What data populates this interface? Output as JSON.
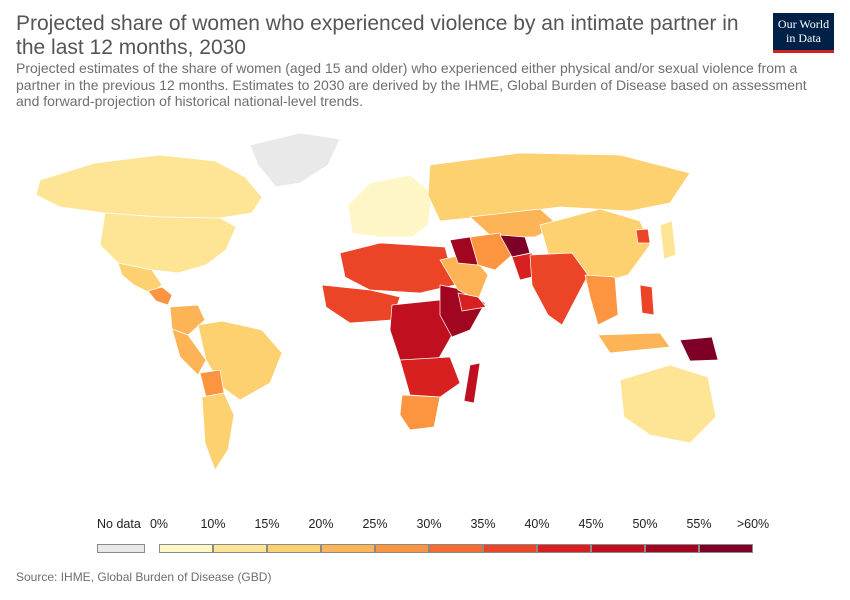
{
  "header": {
    "title": "Projected share of women who experienced violence by an intimate partner in the last 12 months, 2030",
    "subtitle": "Projected estimates of the share of women (aged 15 and older) who experienced either physical and/or sexual violence from a partner in the previous 12 months. Estimates to 2030 are derived by the IHME, Global Burden of Disease based on assessment and forward-projection of historical national-level trends.",
    "logo_line1": "Our World",
    "logo_line2": "in Data"
  },
  "legend": {
    "no_data_label": "No data",
    "no_data_color": "#e9e9e9",
    "ticks": [
      "0%",
      "10%",
      "15%",
      "20%",
      "25%",
      "30%",
      "35%",
      "40%",
      "45%",
      "50%",
      "55%",
      ">60%"
    ],
    "bin_colors": [
      "#fff6c8",
      "#fee596",
      "#fdd070",
      "#fdb456",
      "#fc9440",
      "#f76c30",
      "#ec4427",
      "#d7201f",
      "#c0101f",
      "#a0061f",
      "#7f0026"
    ]
  },
  "map_regions": [
    {
      "name": "Canada",
      "bin": 1
    },
    {
      "name": "United States",
      "bin": 1
    },
    {
      "name": "Greenland",
      "bin": -1
    },
    {
      "name": "Mexico",
      "bin": 2
    },
    {
      "name": "Central America",
      "bin": 4
    },
    {
      "name": "Colombia",
      "bin": 3
    },
    {
      "name": "Brazil",
      "bin": 2
    },
    {
      "name": "Peru",
      "bin": 3
    },
    {
      "name": "Bolivia",
      "bin": 4
    },
    {
      "name": "Argentina",
      "bin": 2
    },
    {
      "name": "Europe",
      "bin": 0
    },
    {
      "name": "Russia",
      "bin": 2
    },
    {
      "name": "Kazakhstan",
      "bin": 3
    },
    {
      "name": "China",
      "bin": 2
    },
    {
      "name": "North Africa",
      "bin": 6
    },
    {
      "name": "West Africa",
      "bin": 6
    },
    {
      "name": "Central Africa",
      "bin": 8
    },
    {
      "name": "East Africa",
      "bin": 9
    },
    {
      "name": "Southern Africa",
      "bin": 7
    },
    {
      "name": "South Africa",
      "bin": 4
    },
    {
      "name": "Madagascar",
      "bin": 8
    },
    {
      "name": "Arabian Peninsula",
      "bin": 3
    },
    {
      "name": "Yemen",
      "bin": 7
    },
    {
      "name": "Iran",
      "bin": 4
    },
    {
      "name": "Iraq",
      "bin": 9
    },
    {
      "name": "Afghanistan",
      "bin": 10
    },
    {
      "name": "Pakistan",
      "bin": 7
    },
    {
      "name": "India",
      "bin": 6
    },
    {
      "name": "Southeast Asia",
      "bin": 4
    },
    {
      "name": "Philippines",
      "bin": 6
    },
    {
      "name": "Indonesia",
      "bin": 3
    },
    {
      "name": "Papua New Guinea",
      "bin": 10
    },
    {
      "name": "Australia",
      "bin": 1
    },
    {
      "name": "North Korea",
      "bin": 6
    },
    {
      "name": "Japan",
      "bin": 1
    }
  ],
  "source": "Source: IHME, Global Burden of Disease (GBD)"
}
